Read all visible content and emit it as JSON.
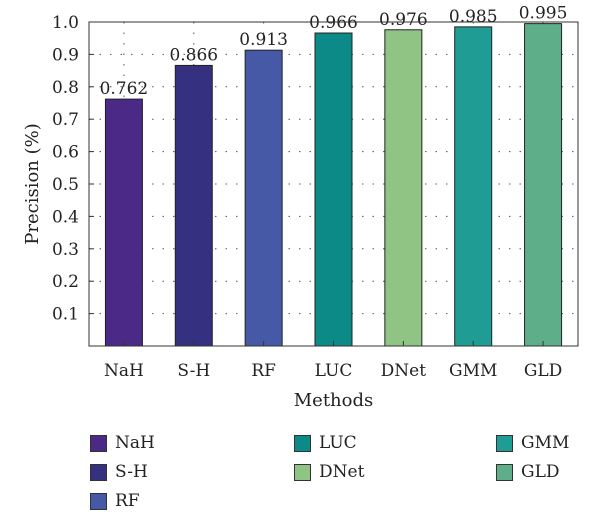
{
  "chart_data": {
    "type": "bar",
    "categories": [
      "NaH",
      "S-H",
      "RF",
      "LUC",
      "DNet",
      "GMM",
      "GLD"
    ],
    "values": [
      0.762,
      0.866,
      0.913,
      0.966,
      0.976,
      0.985,
      0.995
    ],
    "value_labels": [
      "0.762",
      "0.866",
      "0.913",
      "0.966",
      "0.976",
      "0.985",
      "0.995"
    ],
    "colors": [
      "#4a2a86",
      "#35307f",
      "#4659a6",
      "#0b8a88",
      "#8fc484",
      "#1f9c93",
      "#5fae8a"
    ],
    "xlabel": "Methods",
    "ylabel": "Precision (%)",
    "ylim": [
      0,
      1.0
    ],
    "yticks": [
      0.1,
      0.2,
      0.3,
      0.4,
      0.5,
      0.6,
      0.7,
      0.8,
      0.9,
      1.0
    ],
    "ytick_labels": [
      "0.1",
      "0.2",
      "0.3",
      "0.4",
      "0.5",
      "0.6",
      "0.7",
      "0.8",
      "0.9",
      "1.0"
    ],
    "grid": true,
    "legend": {
      "placement": "bottom",
      "entries": [
        "NaH",
        "S-H",
        "RF",
        "LUC",
        "DNet",
        "GMM",
        "GLD"
      ]
    }
  }
}
